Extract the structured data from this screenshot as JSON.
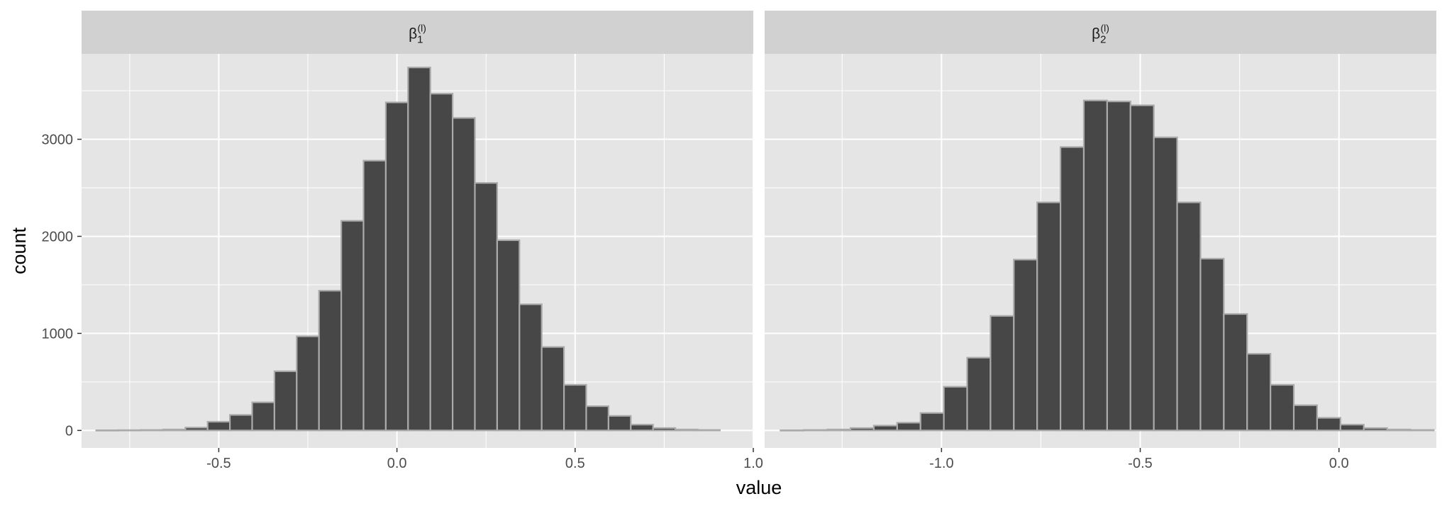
{
  "chart_data": {
    "type": "bar",
    "xlabel": "value",
    "ylabel": "count",
    "ylim": [
      -180,
      3880
    ],
    "y_ticks": [
      0,
      1000,
      2000,
      3000
    ],
    "y_tick_labels": [
      "0",
      "1000",
      "2000",
      "3000"
    ],
    "grid": true,
    "colors": {
      "panel_background": "#e5e5e5",
      "grid_major": "#ffffff",
      "strip_background": "#d1d1d1",
      "bar_fill": "#474747",
      "bar_outline": "#aaaaaa",
      "axis_text": "#4d4d4d",
      "title_text": "#000000"
    },
    "panels": [
      {
        "facet": {
          "symbol": "β",
          "subscript": "1",
          "superscript": "(l)"
        },
        "xlim": [
          -0.885,
          1.0
        ],
        "x_ticks": [
          -0.5,
          0.0,
          0.5,
          1.0
        ],
        "x_tick_labels": [
          "-0.5",
          "0.0",
          "0.5",
          "1.0"
        ],
        "bin_width": 0.0625,
        "bin_centers": [
          -0.8125,
          -0.75,
          -0.6875,
          -0.625,
          -0.5625,
          -0.5,
          -0.4375,
          -0.375,
          -0.3125,
          -0.25,
          -0.1875,
          -0.125,
          -0.0625,
          0.0,
          0.0625,
          0.125,
          0.1875,
          0.25,
          0.3125,
          0.375,
          0.4375,
          0.5,
          0.5625,
          0.625,
          0.6875,
          0.75,
          0.8125,
          0.875
        ],
        "counts": [
          2,
          3,
          5,
          10,
          30,
          90,
          160,
          290,
          610,
          970,
          1440,
          2160,
          2780,
          3380,
          3740,
          3470,
          3220,
          2550,
          1960,
          1300,
          860,
          470,
          250,
          150,
          60,
          25,
          10,
          5
        ]
      },
      {
        "facet": {
          "symbol": "β",
          "subscript": "2",
          "superscript": "(l)"
        },
        "xlim": [
          -1.445,
          0.245
        ],
        "x_ticks": [
          -1.0,
          -0.5,
          0.0
        ],
        "x_tick_labels": [
          "-1.0",
          "-0.5",
          "0.0"
        ],
        "bin_width": 0.0587,
        "bin_centers": [
          -1.3757,
          -1.317,
          -1.2583,
          -1.1996,
          -1.1409,
          -1.0822,
          -1.0235,
          -0.9648,
          -0.9061,
          -0.8474,
          -0.7887,
          -0.73,
          -0.6713,
          -0.6126,
          -0.5539,
          -0.4952,
          -0.4365,
          -0.3778,
          -0.3191,
          -0.2604,
          -0.2017,
          -0.143,
          -0.0843,
          -0.0256,
          0.0331,
          0.0918,
          0.1505,
          0.2092
        ],
        "counts": [
          2,
          5,
          10,
          25,
          50,
          80,
          180,
          450,
          750,
          1180,
          1760,
          2350,
          2920,
          3400,
          3390,
          3350,
          3020,
          2350,
          1770,
          1200,
          790,
          470,
          260,
          130,
          60,
          25,
          10,
          5
        ]
      }
    ]
  }
}
